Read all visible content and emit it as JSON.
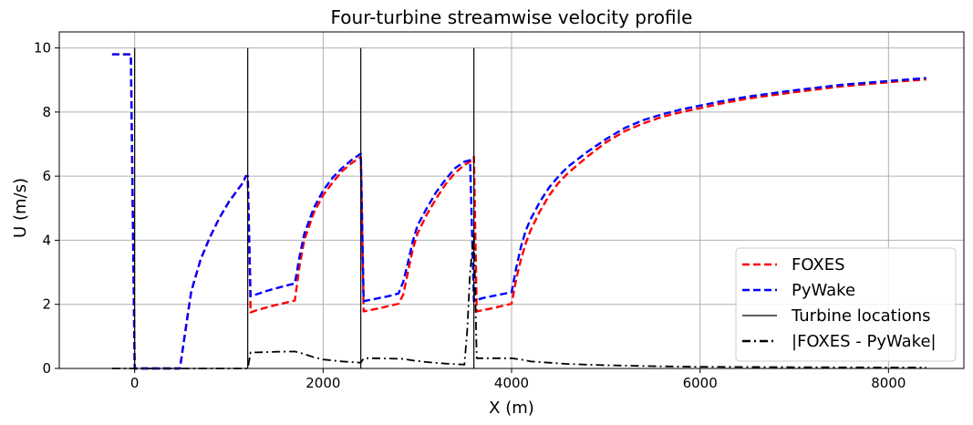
{
  "chart_data": {
    "type": "line",
    "title": "Four-turbine streamwise velocity profile",
    "xlabel": "X (m)",
    "ylabel": "U (m/s)",
    "xlim": [
      -800,
      8800
    ],
    "ylim": [
      0,
      10.5
    ],
    "xticks": [
      0,
      2000,
      4000,
      6000,
      8000
    ],
    "xtick_labels": [
      "0",
      "2000",
      "4000",
      "6000",
      "8000"
    ],
    "yticks": [
      0,
      2,
      4,
      6,
      8,
      10
    ],
    "ytick_labels": [
      "0",
      "2",
      "4",
      "6",
      "8",
      "10"
    ],
    "grid": true,
    "legend_position": "lower right",
    "turbine_x": [
      0,
      1200,
      2400,
      3600
    ],
    "turbine_line_top": 10,
    "series": [
      {
        "name": "FOXES",
        "color": "#ff0000",
        "style": "dashed",
        "x": [
          -240,
          -80,
          -40,
          0,
          10,
          40,
          100,
          200,
          300,
          400,
          480,
          520,
          560,
          600,
          700,
          800,
          900,
          1000,
          1100,
          1150,
          1180,
          1200,
          1230,
          1300,
          1400,
          1500,
          1600,
          1700,
          1750,
          1800,
          1900,
          2000,
          2100,
          2200,
          2300,
          2350,
          2400,
          2430,
          2500,
          2600,
          2700,
          2800,
          2850,
          2900,
          2950,
          3000,
          3100,
          3200,
          3300,
          3400,
          3500,
          3560,
          3600,
          3630,
          3700,
          3800,
          3900,
          4000,
          4050,
          4100,
          4150,
          4200,
          4300,
          4400,
          4500,
          4600,
          4800,
          5000,
          5200,
          5400,
          5600,
          5800,
          6000,
          6200,
          6500,
          7000,
          7500,
          8000,
          8400
        ],
        "y": [
          9.8,
          9.8,
          9.8,
          0.0,
          0.0,
          0.0,
          0.0,
          0.0,
          0.0,
          0.0,
          0.0,
          0.8,
          1.6,
          2.4,
          3.4,
          4.1,
          4.7,
          5.2,
          5.6,
          5.8,
          6.0,
          6.0,
          1.75,
          1.82,
          1.9,
          1.98,
          2.05,
          2.12,
          3.2,
          4.0,
          4.85,
          5.4,
          5.8,
          6.15,
          6.4,
          6.5,
          6.6,
          1.78,
          1.82,
          1.88,
          1.95,
          2.02,
          2.3,
          3.0,
          3.7,
          4.2,
          4.8,
          5.3,
          5.75,
          6.1,
          6.35,
          6.45,
          6.6,
          1.78,
          1.82,
          1.88,
          1.95,
          2.02,
          2.8,
          3.4,
          3.9,
          4.3,
          4.9,
          5.4,
          5.8,
          6.1,
          6.6,
          7.05,
          7.4,
          7.65,
          7.85,
          8.0,
          8.12,
          8.25,
          8.42,
          8.62,
          8.8,
          8.93,
          9.02
        ]
      },
      {
        "name": "PyWake",
        "color": "#0000ff",
        "style": "dashed",
        "x": [
          -240,
          -80,
          -40,
          0,
          10,
          40,
          100,
          200,
          300,
          400,
          480,
          520,
          560,
          600,
          700,
          800,
          900,
          1000,
          1100,
          1150,
          1180,
          1200,
          1230,
          1300,
          1400,
          1500,
          1600,
          1700,
          1750,
          1800,
          1900,
          2000,
          2100,
          2200,
          2300,
          2350,
          2400,
          2430,
          2500,
          2600,
          2700,
          2800,
          2850,
          2900,
          2950,
          3000,
          3100,
          3200,
          3300,
          3400,
          3500,
          3560,
          3600,
          3630,
          3700,
          3800,
          3900,
          4000,
          4050,
          4100,
          4150,
          4200,
          4300,
          4400,
          4500,
          4600,
          4800,
          5000,
          5200,
          5400,
          5600,
          5800,
          6000,
          6200,
          6500,
          7000,
          7500,
          8000,
          8400
        ],
        "y": [
          9.8,
          9.8,
          9.8,
          0.0,
          0.0,
          0.0,
          0.0,
          0.0,
          0.0,
          0.0,
          0.0,
          0.8,
          1.6,
          2.4,
          3.4,
          4.1,
          4.7,
          5.2,
          5.6,
          5.8,
          6.0,
          6.0,
          2.25,
          2.32,
          2.42,
          2.5,
          2.58,
          2.65,
          3.5,
          4.2,
          5.0,
          5.55,
          5.95,
          6.25,
          6.5,
          6.6,
          6.7,
          2.1,
          2.14,
          2.2,
          2.26,
          2.34,
          2.7,
          3.3,
          3.95,
          4.45,
          5.0,
          5.5,
          5.9,
          6.25,
          6.45,
          6.5,
          2.1,
          2.14,
          2.2,
          2.26,
          2.32,
          2.38,
          3.15,
          3.8,
          4.3,
          4.65,
          5.2,
          5.65,
          6.0,
          6.3,
          6.75,
          7.15,
          7.5,
          7.75,
          7.93,
          8.08,
          8.2,
          8.32,
          8.48,
          8.68,
          8.85,
          8.97,
          9.06
        ]
      },
      {
        "name": "|FOXES - PyWake|",
        "color": "#000000",
        "style": "dashdot",
        "x": [
          -240,
          0,
          400,
          1180,
          1200,
          1230,
          1300,
          1500,
          1700,
          1800,
          1900,
          2000,
          2100,
          2200,
          2300,
          2400,
          2430,
          2500,
          2700,
          2850,
          2950,
          3100,
          3300,
          3500,
          3530,
          3560,
          3600,
          3630,
          3700,
          3800,
          4000,
          4100,
          4200,
          4400,
          4600,
          5000,
          5500,
          6000,
          7000,
          8000,
          8400
        ],
        "y": [
          0.0,
          0.0,
          0.0,
          0.0,
          0.0,
          0.5,
          0.5,
          0.52,
          0.53,
          0.45,
          0.35,
          0.28,
          0.25,
          0.22,
          0.2,
          0.18,
          0.32,
          0.32,
          0.31,
          0.3,
          0.25,
          0.2,
          0.15,
          0.12,
          1.2,
          3.0,
          4.2,
          0.32,
          0.32,
          0.32,
          0.32,
          0.28,
          0.22,
          0.18,
          0.14,
          0.1,
          0.07,
          0.05,
          0.04,
          0.03,
          0.03
        ]
      }
    ],
    "legend": [
      {
        "label": "FOXES",
        "color": "#ff0000",
        "style": "dashed"
      },
      {
        "label": "PyWake",
        "color": "#0000ff",
        "style": "dashed"
      },
      {
        "label": "Turbine locations",
        "color": "#000000",
        "style": "solid"
      },
      {
        "label": "|FOXES - PyWake|",
        "color": "#000000",
        "style": "dashdot"
      }
    ]
  }
}
